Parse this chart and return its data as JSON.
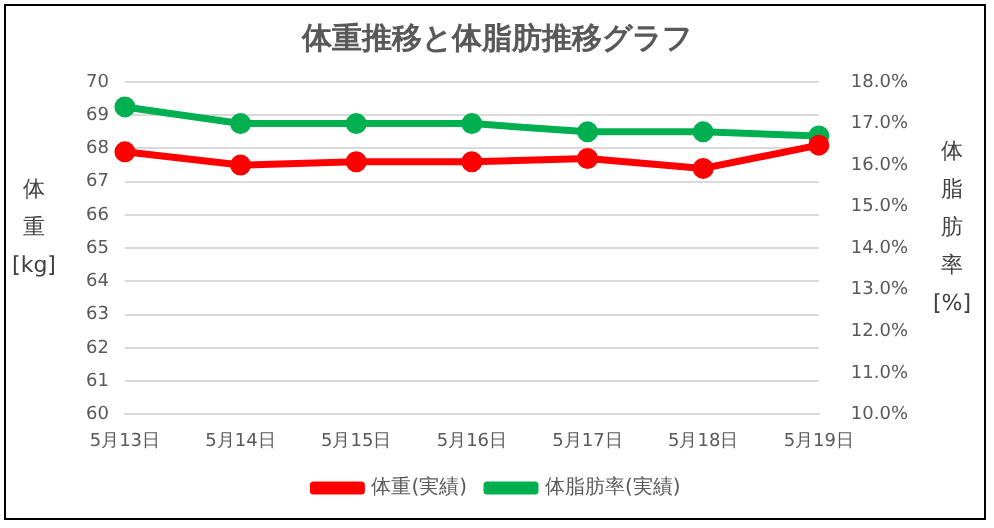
{
  "chart_data": {
    "type": "line",
    "title": "体重推移と体脂肪推移グラフ",
    "ylabel": "体重[kg]",
    "y2label": "体脂肪率[%]",
    "categories": [
      "5月13日",
      "5月14日",
      "5月15日",
      "5月16日",
      "5月17日",
      "5月18日",
      "5月19日"
    ],
    "series": [
      {
        "name": "体重(実績)",
        "color": "#ff0000",
        "values": [
          67.9,
          67.5,
          67.6,
          67.6,
          67.7,
          67.4,
          68.1
        ]
      },
      {
        "name": "体脂肪率(実績)",
        "color": "#00b050",
        "axis": "y2",
        "values": [
          17.4,
          17.0,
          17.0,
          17.0,
          16.8,
          16.8,
          16.7
        ]
      }
    ],
    "ylim": [
      60,
      70
    ],
    "yticks": [
      60,
      61,
      62,
      63,
      64,
      65,
      66,
      67,
      68,
      69,
      70
    ],
    "y2lim": [
      10,
      18
    ],
    "y2ticks": [
      {
        "value": 10,
        "label": "10.0%"
      },
      {
        "value": 11,
        "label": "11.0%"
      },
      {
        "value": 12,
        "label": "12.0%"
      },
      {
        "value": 13,
        "label": "13.0%"
      },
      {
        "value": 14,
        "label": "14.0%"
      },
      {
        "value": 15,
        "label": "15.0%"
      },
      {
        "value": 16,
        "label": "16.0%"
      },
      {
        "value": 17,
        "label": "17.0%"
      },
      {
        "value": 18,
        "label": "18.0%"
      }
    ],
    "grid": "y",
    "legend": "bottom",
    "marker": "circle",
    "line_style": "solid"
  }
}
